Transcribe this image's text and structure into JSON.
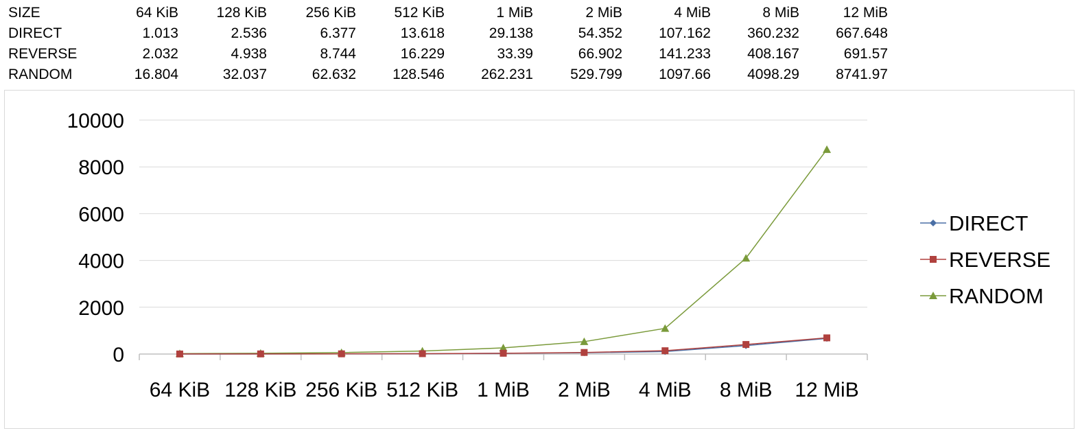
{
  "table": {
    "header_label": "SIZE",
    "columns": [
      "64 KiB",
      "128 KiB",
      "256 KiB",
      "512 KiB",
      "1 MiB",
      "2 MiB",
      "4 MiB",
      "8 MiB",
      "12 MiB"
    ],
    "rows": [
      {
        "label": "DIRECT",
        "values": [
          "1.013",
          "2.536",
          "6.377",
          "13.618",
          "29.138",
          "54.352",
          "107.162",
          "360.232",
          "667.648"
        ]
      },
      {
        "label": "REVERSE",
        "values": [
          "2.032",
          "4.938",
          "8.744",
          "16.229",
          "33.39",
          "66.902",
          "141.233",
          "408.167",
          "691.57"
        ]
      },
      {
        "label": "RANDOM",
        "values": [
          "16.804",
          "32.037",
          "62.632",
          "128.546",
          "262.231",
          "529.799",
          "1097.66",
          "4098.29",
          "8741.97"
        ]
      }
    ]
  },
  "chart_data": {
    "type": "line",
    "categories": [
      "64 KiB",
      "128 KiB",
      "256 KiB",
      "512 KiB",
      "1 MiB",
      "2 MiB",
      "4 MiB",
      "8 MiB",
      "12 MiB"
    ],
    "series": [
      {
        "name": "DIRECT",
        "values": [
          1.013,
          2.536,
          6.377,
          13.618,
          29.138,
          54.352,
          107.162,
          360.232,
          667.648
        ],
        "color": "#4a6fa5",
        "marker": "diamond"
      },
      {
        "name": "REVERSE",
        "values": [
          2.032,
          4.938,
          8.744,
          16.229,
          33.39,
          66.902,
          141.233,
          408.167,
          691.57
        ],
        "color": "#b0413e",
        "marker": "square"
      },
      {
        "name": "RANDOM",
        "values": [
          16.804,
          32.037,
          62.632,
          128.546,
          262.231,
          529.799,
          1097.66,
          4098.29,
          8741.97
        ],
        "color": "#7a9a3a",
        "marker": "triangle"
      }
    ],
    "yticks": [
      0,
      2000,
      4000,
      6000,
      8000,
      10000
    ],
    "ylim": [
      0,
      10000
    ],
    "grid": true,
    "legend": "right",
    "title": "",
    "xlabel": "",
    "ylabel": ""
  }
}
